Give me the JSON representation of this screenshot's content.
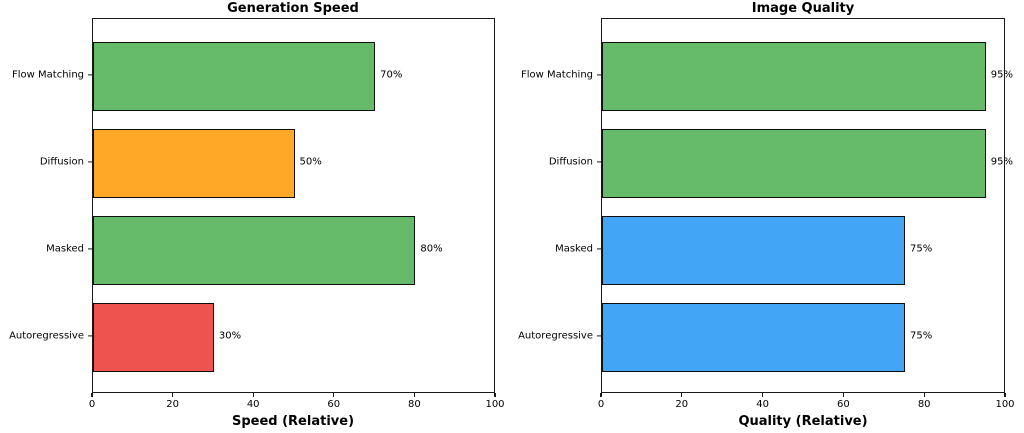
{
  "chart_data": [
    {
      "type": "bar",
      "orientation": "horizontal",
      "title": "Generation Speed",
      "xlabel": "Speed (Relative)",
      "ylabel": "",
      "categories": [
        "Flow Matching",
        "Diffusion",
        "Masked",
        "Autoregressive"
      ],
      "values": [
        70,
        50,
        80,
        30
      ],
      "value_labels": [
        "70%",
        "50%",
        "80%",
        "30%"
      ],
      "bar_colors": [
        "#66BB6A",
        "#FFA726",
        "#66BB6A",
        "#EF5350"
      ],
      "xlim": [
        0,
        100
      ],
      "xticks": [
        0,
        20,
        40,
        60,
        80,
        100
      ],
      "grid": false,
      "legend": null
    },
    {
      "type": "bar",
      "orientation": "horizontal",
      "title": "Image Quality",
      "xlabel": "Quality (Relative)",
      "ylabel": "",
      "categories": [
        "Flow Matching",
        "Diffusion",
        "Masked",
        "Autoregressive"
      ],
      "values": [
        95,
        95,
        75,
        75
      ],
      "value_labels": [
        "95%",
        "95%",
        "75%",
        "75%"
      ],
      "bar_colors": [
        "#66BB6A",
        "#66BB6A",
        "#42A5F5",
        "#42A5F5"
      ],
      "xlim": [
        0,
        100
      ],
      "xticks": [
        0,
        20,
        40,
        60,
        80,
        100
      ],
      "grid": false,
      "legend": null
    }
  ],
  "style": {
    "bar_edge_color": "#0d0d0d",
    "axis_color": "#1a1a1a",
    "background": "#ffffff"
  }
}
